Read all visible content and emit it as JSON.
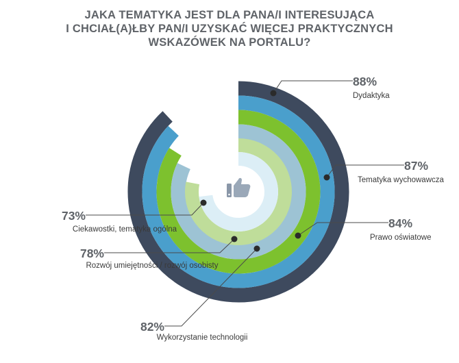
{
  "title_lines": [
    "JAKA TEMATYKA JEST DLA PANA/I INTERESUJĄCA",
    "I CHCIAŁ(A)ŁBY PAN/I UZYSKAĆ WIĘCEJ PRAKTYCZNYCH",
    "WSKAZÓWEK NA PORTALU?"
  ],
  "icon": "thumbs-up-icon",
  "chart_data": {
    "type": "radial-bar",
    "title": "JAKA TEMATYKA JEST DLA PANA/I INTERESUJĄCA I CHCIAŁ(A)ŁBY PAN/I UZYSKAĆ WIĘCEJ PRAKTYCZNYCH WSKAZÓWEK NA PORTALU?",
    "unit": "%",
    "series": [
      {
        "label": "Dydaktyka",
        "value": 88,
        "value_text": "88%",
        "color": "#3e4a5e"
      },
      {
        "label": "Tematyka wychowawcza",
        "value": 87,
        "value_text": "87%",
        "color": "#4a9fcc"
      },
      {
        "label": "Prawo oświatowe",
        "value": 84,
        "value_text": "84%",
        "color": "#7dc12e"
      },
      {
        "label": "Wykorzystanie technologii",
        "value": 82,
        "value_text": "82%",
        "color": "#9dc3d4"
      },
      {
        "label": "Rozwój umiejętności / rozwój osobisty",
        "value": 78,
        "value_text": "78%",
        "color": "#bfdd9a"
      },
      {
        "label": "Ciekawostki, tematyka ogólna",
        "value": 73,
        "value_text": "73%",
        "color": "#dceef6"
      }
    ]
  }
}
